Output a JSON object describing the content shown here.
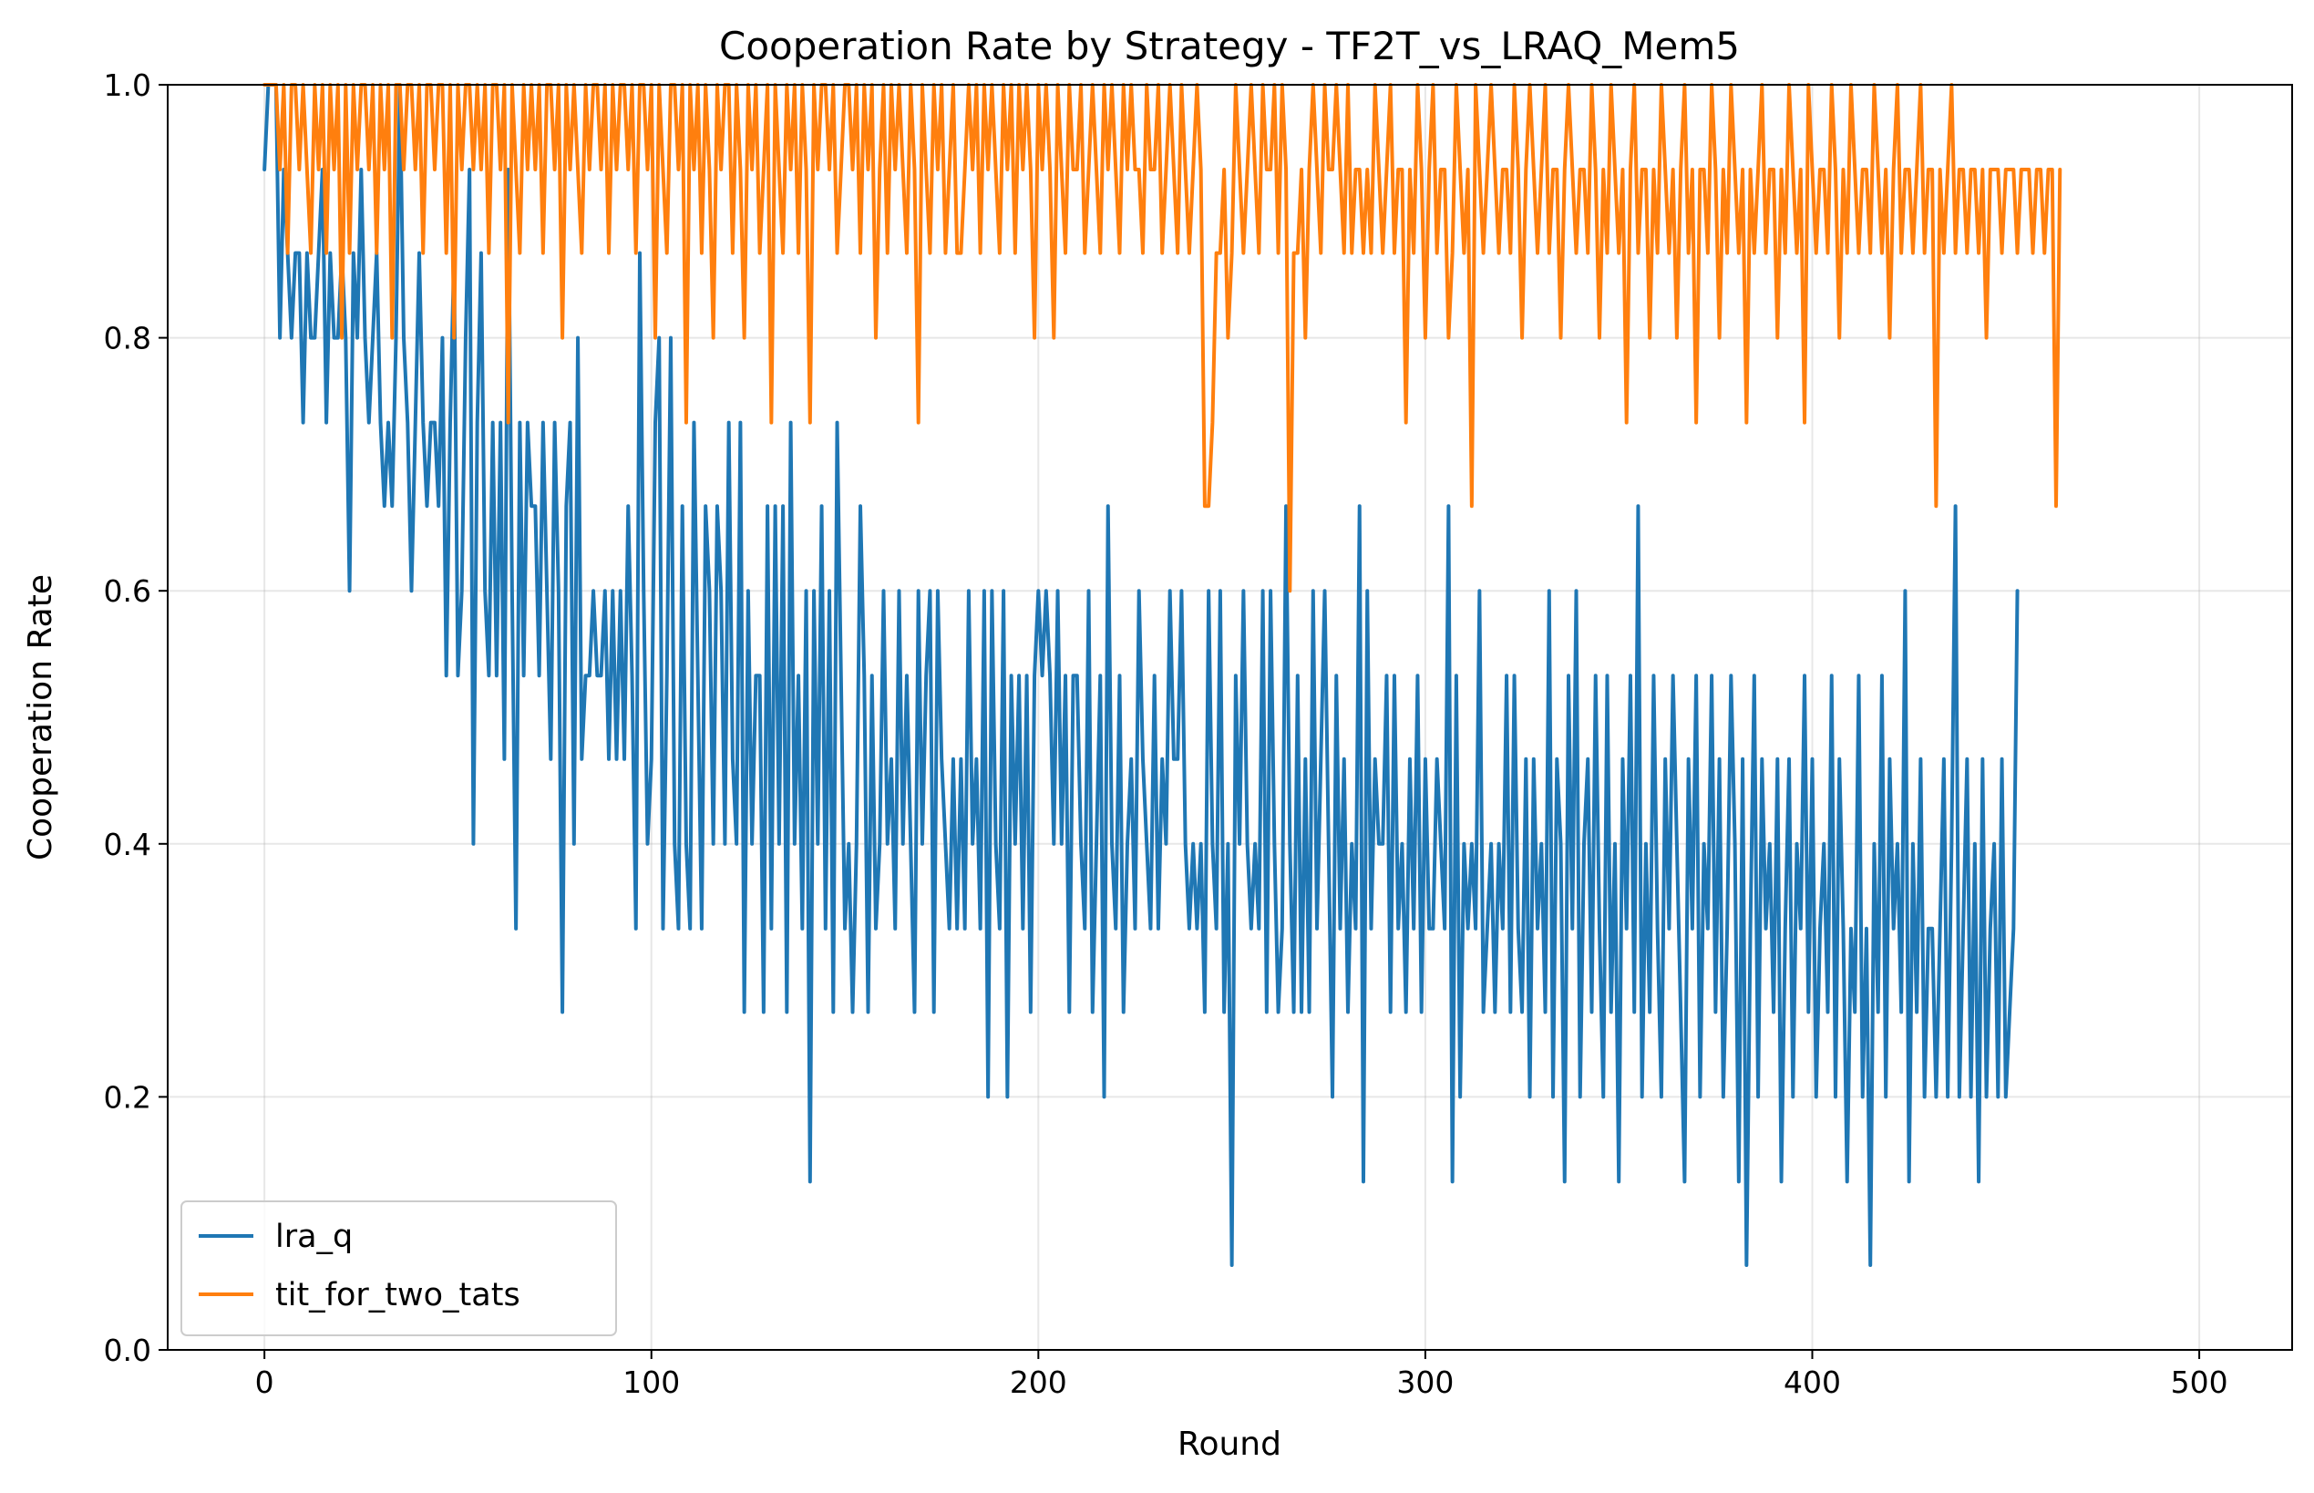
{
  "chart_data": {
    "type": "line",
    "title": "Cooperation Rate by Strategy - TF2T_vs_LRAQ_Mem5",
    "xlabel": "Round",
    "ylabel": "Cooperation Rate",
    "xlim": [
      -25,
      524
    ],
    "ylim": [
      0.0,
      1.0
    ],
    "xticks": [
      0,
      100,
      200,
      300,
      400,
      500
    ],
    "xtick_labels": [
      "0",
      "100",
      "200",
      "300",
      "400",
      "500"
    ],
    "yticks": [
      0.0,
      0.2,
      0.4,
      0.6,
      0.8,
      1.0
    ],
    "ytick_labels": [
      "0.0",
      "0.2",
      "0.4",
      "0.6",
      "0.8",
      "1.0"
    ],
    "grid": true,
    "legend_position": "lower-left",
    "x_start": 0,
    "x_step": 1,
    "series": [
      {
        "name": "lra_q",
        "color": "#1f77b4",
        "values": [
          0.933,
          1.0,
          1.0,
          1.0,
          0.8,
          0.933,
          0.867,
          0.8,
          0.867,
          0.867,
          0.733,
          0.867,
          0.8,
          0.8,
          0.867,
          0.933,
          0.733,
          0.867,
          0.8,
          0.8,
          0.867,
          0.8,
          0.6,
          0.867,
          0.8,
          0.933,
          0.8,
          0.733,
          0.8,
          0.867,
          0.733,
          0.667,
          0.733,
          0.667,
          0.8,
          1.0,
          0.8,
          0.733,
          0.6,
          0.733,
          0.867,
          0.733,
          0.667,
          0.733,
          0.733,
          0.667,
          0.8,
          0.533,
          0.733,
          0.867,
          0.533,
          0.6,
          0.8,
          0.933,
          0.4,
          0.733,
          0.867,
          0.6,
          0.533,
          0.733,
          0.533,
          0.733,
          0.467,
          0.933,
          0.6,
          0.333,
          0.733,
          0.533,
          0.733,
          0.667,
          0.667,
          0.533,
          0.733,
          0.6,
          0.467,
          0.733,
          0.6,
          0.267,
          0.667,
          0.733,
          0.4,
          0.8,
          0.467,
          0.533,
          0.533,
          0.6,
          0.533,
          0.533,
          0.6,
          0.467,
          0.6,
          0.467,
          0.6,
          0.467,
          0.667,
          0.533,
          0.333,
          0.867,
          0.6,
          0.4,
          0.467,
          0.733,
          0.8,
          0.333,
          0.533,
          0.8,
          0.4,
          0.333,
          0.667,
          0.4,
          0.333,
          0.733,
          0.533,
          0.333,
          0.667,
          0.6,
          0.4,
          0.667,
          0.6,
          0.4,
          0.733,
          0.467,
          0.4,
          0.733,
          0.267,
          0.6,
          0.4,
          0.533,
          0.533,
          0.267,
          0.667,
          0.333,
          0.667,
          0.4,
          0.667,
          0.267,
          0.733,
          0.4,
          0.533,
          0.333,
          0.6,
          0.133,
          0.6,
          0.4,
          0.667,
          0.333,
          0.6,
          0.267,
          0.733,
          0.533,
          0.333,
          0.4,
          0.267,
          0.4,
          0.667,
          0.533,
          0.267,
          0.533,
          0.333,
          0.4,
          0.6,
          0.4,
          0.467,
          0.333,
          0.6,
          0.4,
          0.533,
          0.4,
          0.267,
          0.6,
          0.4,
          0.533,
          0.6,
          0.267,
          0.6,
          0.467,
          0.4,
          0.333,
          0.467,
          0.333,
          0.467,
          0.333,
          0.6,
          0.4,
          0.467,
          0.333,
          0.6,
          0.2,
          0.6,
          0.4,
          0.333,
          0.6,
          0.2,
          0.533,
          0.4,
          0.533,
          0.333,
          0.533,
          0.267,
          0.533,
          0.6,
          0.533,
          0.6,
          0.533,
          0.4,
          0.6,
          0.4,
          0.533,
          0.267,
          0.533,
          0.533,
          0.4,
          0.333,
          0.6,
          0.267,
          0.4,
          0.533,
          0.2,
          0.667,
          0.4,
          0.333,
          0.533,
          0.267,
          0.4,
          0.467,
          0.333,
          0.6,
          0.467,
          0.4,
          0.333,
          0.533,
          0.333,
          0.467,
          0.4,
          0.6,
          0.467,
          0.467,
          0.6,
          0.4,
          0.333,
          0.4,
          0.333,
          0.4,
          0.267,
          0.6,
          0.4,
          0.333,
          0.6,
          0.267,
          0.4,
          0.067,
          0.533,
          0.4,
          0.6,
          0.4,
          0.333,
          0.4,
          0.333,
          0.6,
          0.267,
          0.6,
          0.4,
          0.267,
          0.333,
          0.667,
          0.4,
          0.267,
          0.533,
          0.267,
          0.467,
          0.267,
          0.6,
          0.333,
          0.467,
          0.6,
          0.4,
          0.2,
          0.533,
          0.333,
          0.467,
          0.267,
          0.4,
          0.333,
          0.667,
          0.133,
          0.6,
          0.333,
          0.467,
          0.4,
          0.4,
          0.533,
          0.267,
          0.533,
          0.333,
          0.4,
          0.267,
          0.467,
          0.333,
          0.533,
          0.267,
          0.467,
          0.333,
          0.333,
          0.467,
          0.4,
          0.333,
          0.667,
          0.133,
          0.533,
          0.2,
          0.4,
          0.333,
          0.4,
          0.333,
          0.6,
          0.267,
          0.333,
          0.4,
          0.267,
          0.4,
          0.333,
          0.533,
          0.267,
          0.533,
          0.333,
          0.267,
          0.467,
          0.2,
          0.467,
          0.333,
          0.4,
          0.267,
          0.6,
          0.2,
          0.467,
          0.4,
          0.133,
          0.533,
          0.333,
          0.6,
          0.2,
          0.4,
          0.467,
          0.267,
          0.533,
          0.333,
          0.2,
          0.533,
          0.267,
          0.4,
          0.133,
          0.467,
          0.333,
          0.533,
          0.267,
          0.667,
          0.2,
          0.4,
          0.267,
          0.533,
          0.333,
          0.2,
          0.467,
          0.333,
          0.533,
          0.4,
          0.267,
          0.133,
          0.467,
          0.333,
          0.533,
          0.2,
          0.4,
          0.333,
          0.533,
          0.267,
          0.467,
          0.2,
          0.333,
          0.533,
          0.4,
          0.133,
          0.467,
          0.067,
          0.333,
          0.533,
          0.2,
          0.467,
          0.333,
          0.4,
          0.267,
          0.467,
          0.133,
          0.333,
          0.467,
          0.2,
          0.4,
          0.333,
          0.533,
          0.267,
          0.467,
          0.2,
          0.333,
          0.4,
          0.267,
          0.533,
          0.2,
          0.467,
          0.333,
          0.133,
          0.333,
          0.267,
          0.533,
          0.2,
          0.333,
          0.067,
          0.4,
          0.267,
          0.533,
          0.2,
          0.467,
          0.333,
          0.4,
          0.267,
          0.6,
          0.133,
          0.4,
          0.267,
          0.467,
          0.2,
          0.333,
          0.333,
          0.2,
          0.333,
          0.467,
          0.2,
          0.4,
          0.667,
          0.2,
          0.333,
          0.467,
          0.2,
          0.4,
          0.133,
          0.467,
          0.2,
          0.333,
          0.4,
          0.2,
          0.467,
          0.2,
          0.267,
          0.333,
          0.6
        ]
      },
      {
        "name": "tit_for_two_tats",
        "color": "#ff7f0e",
        "values": [
          1.0,
          1.0,
          1.0,
          1.0,
          0.933,
          1.0,
          0.867,
          1.0,
          1.0,
          0.933,
          1.0,
          0.933,
          0.867,
          1.0,
          0.933,
          1.0,
          0.867,
          1.0,
          0.933,
          1.0,
          0.8,
          1.0,
          0.867,
          1.0,
          0.933,
          1.0,
          1.0,
          0.933,
          1.0,
          0.867,
          1.0,
          0.933,
          1.0,
          0.8,
          1.0,
          1.0,
          0.933,
          1.0,
          1.0,
          0.933,
          1.0,
          0.867,
          1.0,
          1.0,
          0.933,
          1.0,
          1.0,
          0.867,
          1.0,
          0.8,
          1.0,
          0.933,
          1.0,
          1.0,
          0.933,
          1.0,
          0.933,
          1.0,
          0.867,
          1.0,
          1.0,
          0.933,
          1.0,
          0.733,
          1.0,
          0.933,
          0.867,
          1.0,
          0.933,
          1.0,
          0.933,
          1.0,
          0.867,
          1.0,
          1.0,
          0.933,
          1.0,
          0.8,
          1.0,
          0.933,
          1.0,
          0.933,
          0.867,
          1.0,
          0.933,
          1.0,
          1.0,
          0.933,
          1.0,
          0.867,
          1.0,
          0.933,
          1.0,
          1.0,
          0.933,
          1.0,
          0.867,
          1.0,
          1.0,
          0.933,
          1.0,
          0.8,
          1.0,
          0.933,
          0.867,
          1.0,
          1.0,
          0.933,
          1.0,
          0.733,
          1.0,
          0.933,
          1.0,
          0.867,
          1.0,
          0.933,
          0.8,
          1.0,
          0.933,
          1.0,
          1.0,
          0.867,
          1.0,
          0.933,
          0.8,
          1.0,
          0.933,
          1.0,
          0.867,
          0.933,
          1.0,
          0.733,
          1.0,
          0.933,
          0.867,
          1.0,
          0.933,
          1.0,
          0.867,
          1.0,
          0.933,
          0.733,
          1.0,
          0.933,
          1.0,
          1.0,
          0.933,
          1.0,
          0.867,
          0.933,
          1.0,
          1.0,
          0.933,
          1.0,
          0.867,
          1.0,
          0.933,
          1.0,
          0.8,
          0.933,
          1.0,
          0.867,
          1.0,
          0.933,
          1.0,
          0.933,
          0.867,
          1.0,
          0.933,
          0.733,
          1.0,
          0.933,
          0.867,
          1.0,
          0.933,
          1.0,
          0.867,
          0.933,
          1.0,
          0.867,
          0.867,
          0.933,
          1.0,
          0.933,
          1.0,
          0.867,
          1.0,
          0.933,
          1.0,
          0.933,
          0.867,
          1.0,
          0.933,
          1.0,
          0.867,
          1.0,
          0.933,
          1.0,
          0.933,
          0.8,
          1.0,
          0.933,
          1.0,
          0.933,
          0.8,
          1.0,
          0.933,
          0.867,
          1.0,
          0.933,
          0.933,
          1.0,
          0.867,
          0.933,
          1.0,
          0.933,
          0.867,
          1.0,
          0.933,
          1.0,
          0.933,
          0.867,
          1.0,
          0.933,
          1.0,
          0.933,
          0.933,
          0.867,
          1.0,
          0.933,
          0.933,
          1.0,
          0.867,
          0.933,
          1.0,
          0.933,
          0.867,
          1.0,
          0.933,
          0.867,
          0.933,
          1.0,
          0.933,
          0.667,
          0.667,
          0.733,
          0.867,
          0.867,
          0.933,
          0.8,
          0.867,
          1.0,
          0.933,
          0.867,
          0.933,
          1.0,
          0.933,
          0.867,
          1.0,
          0.933,
          0.933,
          1.0,
          0.867,
          1.0,
          0.933,
          0.6,
          0.867,
          0.867,
          0.933,
          0.8,
          0.933,
          1.0,
          0.933,
          0.867,
          1.0,
          0.933,
          0.933,
          1.0,
          0.933,
          0.867,
          1.0,
          0.867,
          0.933,
          0.933,
          0.867,
          0.933,
          0.867,
          1.0,
          0.933,
          0.867,
          0.933,
          1.0,
          0.867,
          0.933,
          0.933,
          0.733,
          0.933,
          0.867,
          1.0,
          0.933,
          0.8,
          0.933,
          1.0,
          0.867,
          0.933,
          0.933,
          0.8,
          0.867,
          1.0,
          0.933,
          0.867,
          0.933,
          0.667,
          1.0,
          0.933,
          0.867,
          0.933,
          1.0,
          0.933,
          0.867,
          0.933,
          0.933,
          0.867,
          1.0,
          0.933,
          0.8,
          0.933,
          1.0,
          0.933,
          0.867,
          0.933,
          1.0,
          0.867,
          0.933,
          0.933,
          0.8,
          0.933,
          1.0,
          0.933,
          0.867,
          0.933,
          0.933,
          0.867,
          1.0,
          0.933,
          0.8,
          0.933,
          0.867,
          1.0,
          0.933,
          0.867,
          0.933,
          0.733,
          0.933,
          1.0,
          0.867,
          0.933,
          0.933,
          0.8,
          0.933,
          0.867,
          1.0,
          0.933,
          0.867,
          0.933,
          0.8,
          0.933,
          1.0,
          0.867,
          0.933,
          0.733,
          0.933,
          0.933,
          0.867,
          1.0,
          0.933,
          0.8,
          0.933,
          0.867,
          1.0,
          0.933,
          0.867,
          0.933,
          0.733,
          0.933,
          0.867,
          0.933,
          1.0,
          0.867,
          0.933,
          0.933,
          0.8,
          0.933,
          0.867,
          1.0,
          0.933,
          0.867,
          0.933,
          0.733,
          1.0,
          0.933,
          0.867,
          0.933,
          0.933,
          0.867,
          1.0,
          0.933,
          0.8,
          0.933,
          0.867,
          1.0,
          0.933,
          0.867,
          0.933,
          0.933,
          0.867,
          1.0,
          0.933,
          0.867,
          0.933,
          0.8,
          0.933,
          1.0,
          0.867,
          0.933,
          0.933,
          0.867,
          0.933,
          1.0,
          0.867,
          0.933,
          0.933,
          0.667,
          0.933,
          0.867,
          0.933,
          1.0,
          0.867,
          0.933,
          0.933,
          0.867,
          0.933,
          0.933,
          0.867,
          0.933,
          0.8,
          0.933,
          0.933,
          0.933,
          0.867,
          0.933,
          0.933,
          0.933,
          0.867,
          0.933,
          0.933,
          0.933,
          0.867,
          0.933,
          0.933,
          0.867,
          0.933,
          0.933,
          0.667,
          0.933
        ]
      }
    ]
  }
}
